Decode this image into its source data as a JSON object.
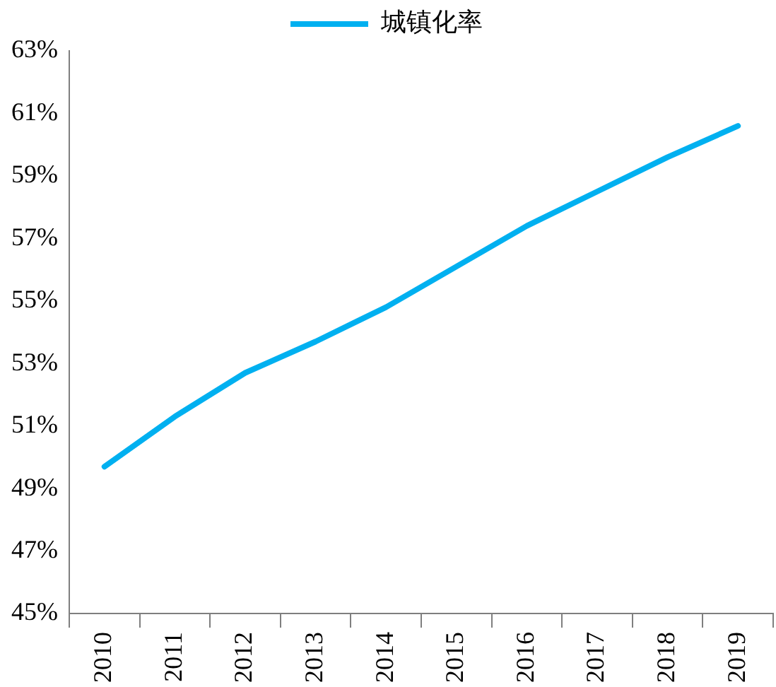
{
  "chart_data": {
    "type": "line",
    "categories": [
      "2010",
      "2011",
      "2012",
      "2013",
      "2014",
      "2015",
      "2016",
      "2017",
      "2018",
      "2019"
    ],
    "series": [
      {
        "name": "城镇化率",
        "color": "#00b0f0",
        "values": [
          49.7,
          51.3,
          52.7,
          53.7,
          54.8,
          56.1,
          57.4,
          58.5,
          59.6,
          60.6
        ]
      }
    ],
    "ylim": [
      45,
      63
    ],
    "yticks": [
      {
        "value": 45,
        "label": "45%"
      },
      {
        "value": 47,
        "label": "47%"
      },
      {
        "value": 49,
        "label": "49%"
      },
      {
        "value": 51,
        "label": "51%"
      },
      {
        "value": 53,
        "label": "53%"
      },
      {
        "value": 55,
        "label": "55%"
      },
      {
        "value": 57,
        "label": "57%"
      },
      {
        "value": 59,
        "label": "59%"
      },
      {
        "value": 61,
        "label": "61%"
      },
      {
        "value": 63,
        "label": "63%"
      }
    ],
    "grid": false,
    "legend": "top",
    "marker": "none",
    "line_style": "solid"
  }
}
